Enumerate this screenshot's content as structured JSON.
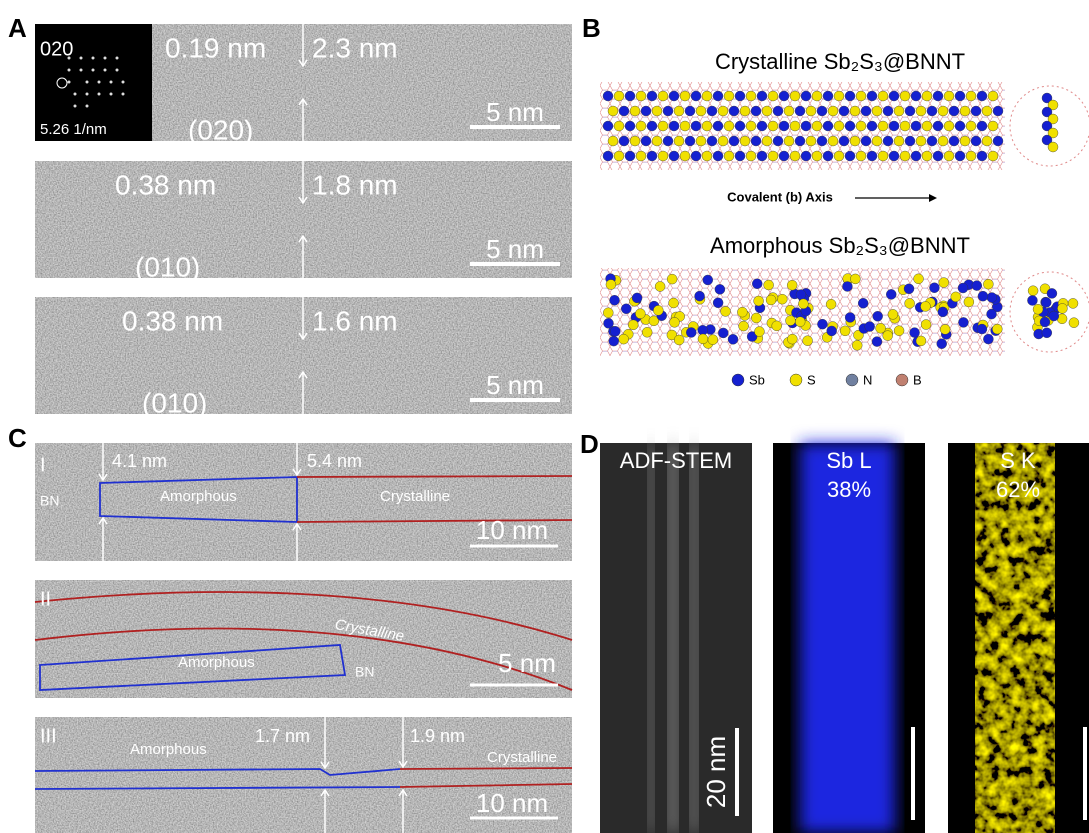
{
  "panel_labels": [
    "A",
    "B",
    "C",
    "D"
  ],
  "panel_a": {
    "fft": {
      "label": "020",
      "scale": "5.26 1/nm"
    },
    "rows": [
      {
        "spacing": "0.19 nm",
        "diameter": "2.3 nm",
        "plane": "(020)",
        "scale_bar": "5 nm"
      },
      {
        "spacing": "0.38 nm",
        "diameter": "1.8 nm",
        "plane": "(010)",
        "scale_bar": "5 nm"
      },
      {
        "spacing": "0.38 nm",
        "diameter": "1.6 nm",
        "plane": "(010)",
        "scale_bar": "5 nm"
      }
    ]
  },
  "panel_b": {
    "crystalline_title": "Crystalline Sb₂S₃@BNNT",
    "axis_label": "Covalent (b) Axis",
    "amorphous_title": "Amorphous Sb₂S₃@BNNT",
    "legend": [
      "Sb",
      "S",
      "N",
      "B"
    ]
  },
  "panel_c": {
    "rows": [
      {
        "numeral": "I",
        "left_diameter": "4.1 nm",
        "right_diameter": "5.4 nm",
        "bn": "BN",
        "amorphous": "Amorphous",
        "crystalline": "Crystalline",
        "scale_bar": "10 nm"
      },
      {
        "numeral": "II",
        "crystalline": "Crystalline",
        "amorphous": "Amorphous",
        "bn": "BN",
        "scale_bar": "5 nm"
      },
      {
        "numeral": "III",
        "amorphous": "Amorphous",
        "left_diameter": "1.7 nm",
        "right_diameter": "1.9 nm",
        "crystalline": "Crystalline",
        "scale_bar": "10 nm"
      }
    ]
  },
  "panel_d": {
    "maps": [
      {
        "label": "ADF-STEM",
        "scale_bar": "20 nm"
      },
      {
        "label": "Sb L",
        "percent": "38%"
      },
      {
        "label": "S K",
        "percent": "62%"
      }
    ]
  }
}
